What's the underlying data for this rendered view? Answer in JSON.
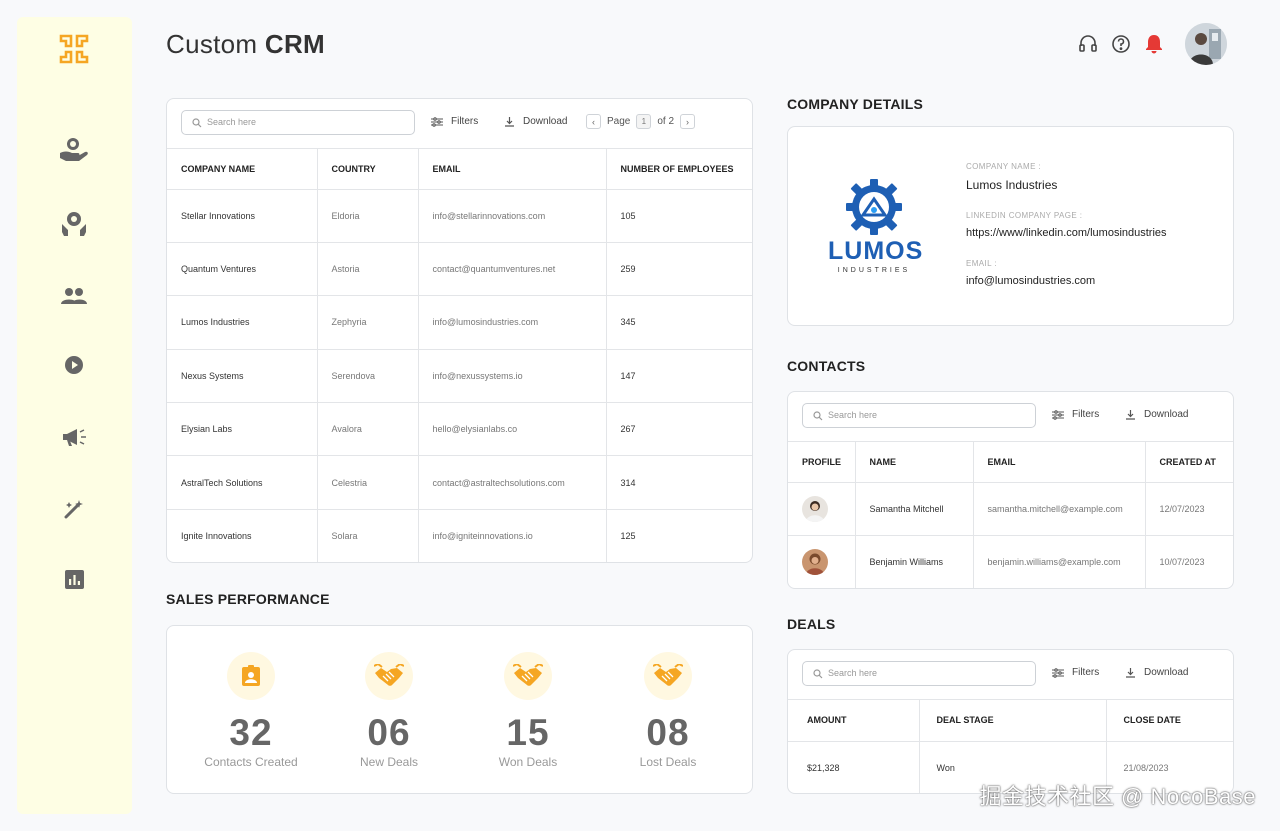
{
  "app": {
    "title_light": "Custom ",
    "title_bold": "CRM"
  },
  "sidebar": {
    "items": [
      {
        "icon": "hand-coin-icon"
      },
      {
        "icon": "gear-hand-icon"
      },
      {
        "icon": "users-icon"
      },
      {
        "icon": "play-circle-icon"
      },
      {
        "icon": "megaphone-icon"
      },
      {
        "icon": "magic-wand-icon"
      },
      {
        "icon": "bar-chart-icon"
      }
    ]
  },
  "header": {
    "icons": [
      "headset-icon",
      "help-icon",
      "bell-icon"
    ]
  },
  "companies": {
    "search_placeholder": "Search here",
    "filters_label": "Filters",
    "download_label": "Download",
    "page_label": "Page",
    "page_current": "1",
    "page_total": "of 2",
    "columns": [
      "COMPANY NAME",
      "COUNTRY",
      "EMAIL",
      "NUMBER OF EMPLOYEES"
    ],
    "rows": [
      {
        "name": "Stellar Innovations",
        "country": "Eldoria",
        "email": "info@stellarinnovations.com",
        "employees": "105"
      },
      {
        "name": "Quantum Ventures",
        "country": "Astoria",
        "email": "contact@quantumventures.net",
        "employees": "259"
      },
      {
        "name": "Lumos Industries",
        "country": "Zephyria",
        "email": "info@lumosindustries.com",
        "employees": "345"
      },
      {
        "name": "Nexus Systems",
        "country": "Serendova",
        "email": "info@nexussystems.io",
        "employees": "147"
      },
      {
        "name": "Elysian Labs",
        "country": "Avalora",
        "email": "hello@elysianlabs.co",
        "employees": "267"
      },
      {
        "name": "AstralTech Solutions",
        "country": "Celestria",
        "email": "contact@astraltechsolutions.com",
        "employees": "314"
      },
      {
        "name": "Ignite Innovations",
        "country": "Solara",
        "email": "info@igniteinnovations.io",
        "employees": "125"
      }
    ]
  },
  "company_details": {
    "section_title": "COMPANY DETAILS",
    "logo_word": "LUMOS",
    "logo_sub": "INDUSTRIES",
    "name_label": "COMPANY NAME :",
    "name_value": "Lumos Industries",
    "linkedin_label": "LINKEDIN COMPANY PAGE :",
    "linkedin_value": "https://www/linkedin.com/lumosindustries",
    "email_label": "EMAIL :",
    "email_value": "info@lumosindustries.com"
  },
  "contacts": {
    "section_title": "CONTACTS",
    "search_placeholder": "Search here",
    "filters_label": "Filters",
    "download_label": "Download",
    "columns": [
      "PROFILE",
      "NAME",
      "EMAIL",
      "CREATED AT"
    ],
    "rows": [
      {
        "name": "Samantha Mitchell",
        "email": "samantha.mitchell@example.com",
        "created": "12/07/2023"
      },
      {
        "name": "Benjamin Williams",
        "email": "benjamin.williams@example.com",
        "created": "10/07/2023"
      }
    ]
  },
  "sales": {
    "section_title": "SALES PERFORMANCE",
    "stats": [
      {
        "value": "32",
        "label": "Contacts Created",
        "icon": "contact-badge-icon"
      },
      {
        "value": "06",
        "label": "New Deals",
        "icon": "handshake-icon"
      },
      {
        "value": "15",
        "label": "Won Deals",
        "icon": "handshake-icon"
      },
      {
        "value": "08",
        "label": "Lost Deals",
        "icon": "handshake-icon"
      }
    ]
  },
  "deals": {
    "section_title": "DEALS",
    "search_placeholder": "Search here",
    "filters_label": "Filters",
    "download_label": "Download",
    "columns": [
      "AMOUNT",
      "DEAL STAGE",
      "CLOSE DATE"
    ],
    "rows": [
      {
        "amount": "$21,328",
        "stage": "Won",
        "close": "21/08/2023"
      }
    ]
  },
  "watermark": "掘金技术社区 @ NocoBase",
  "colors": {
    "accent": "#f5a623",
    "sidebar_bg": "#fefee4",
    "bell": "#e53935",
    "logo_blue": "#1e5fb4"
  }
}
